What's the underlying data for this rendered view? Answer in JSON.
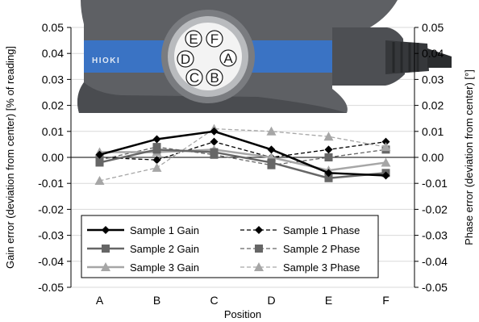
{
  "chart_data": {
    "type": "line",
    "categories": [
      "A",
      "B",
      "C",
      "D",
      "E",
      "F"
    ],
    "xlabel": "Position",
    "ylabel_left": "Gain error (deviation from center) [% of reading]",
    "ylabel_right": "Phase error (deviation from center) [°]",
    "ylim": [
      -0.05,
      0.05
    ],
    "y_ticks": [
      "0.05",
      "0.04",
      "0.03",
      "0.02",
      "0.01",
      "0.00",
      "-0.01",
      "-0.02",
      "-0.03",
      "-0.04",
      "-0.05"
    ],
    "grid": true,
    "legend_position": "bottom-center",
    "series": [
      {
        "name": "Sample 1 Gain",
        "values": [
          0.001,
          0.007,
          0.01,
          0.003,
          -0.006,
          -0.007
        ],
        "color": "#000000",
        "dash": "solid",
        "marker": "diamond"
      },
      {
        "name": "Sample 1 Phase",
        "values": [
          0.0,
          -0.001,
          0.006,
          0.0,
          0.003,
          0.006
        ],
        "color": "#000000",
        "dash": "dashed",
        "marker": "diamond"
      },
      {
        "name": "Sample 2 Gain",
        "values": [
          -0.002,
          0.003,
          0.002,
          -0.002,
          -0.008,
          -0.006
        ],
        "color": "#666666",
        "dash": "solid",
        "marker": "square"
      },
      {
        "name": "Sample 2 Phase",
        "values": [
          -0.001,
          0.004,
          0.001,
          -0.003,
          0.0,
          0.003
        ],
        "color": "#666666",
        "dash": "dashed",
        "marker": "square"
      },
      {
        "name": "Sample 3 Gain",
        "values": [
          0.002,
          0.002,
          0.003,
          0.0,
          -0.005,
          -0.002
        ],
        "color": "#a6a6a6",
        "dash": "solid",
        "marker": "triangle"
      },
      {
        "name": "Sample 3 Phase",
        "values": [
          -0.009,
          -0.004,
          0.011,
          0.01,
          0.008,
          0.004
        ],
        "color": "#a6a6a6",
        "dash": "dashed",
        "marker": "triangle"
      }
    ]
  },
  "photo": {
    "brand": "HIOKI",
    "pins": [
      "E",
      "F",
      "D",
      "A",
      "C",
      "B"
    ],
    "body_color": "#5e6064",
    "band_color": "#3a73c4"
  }
}
